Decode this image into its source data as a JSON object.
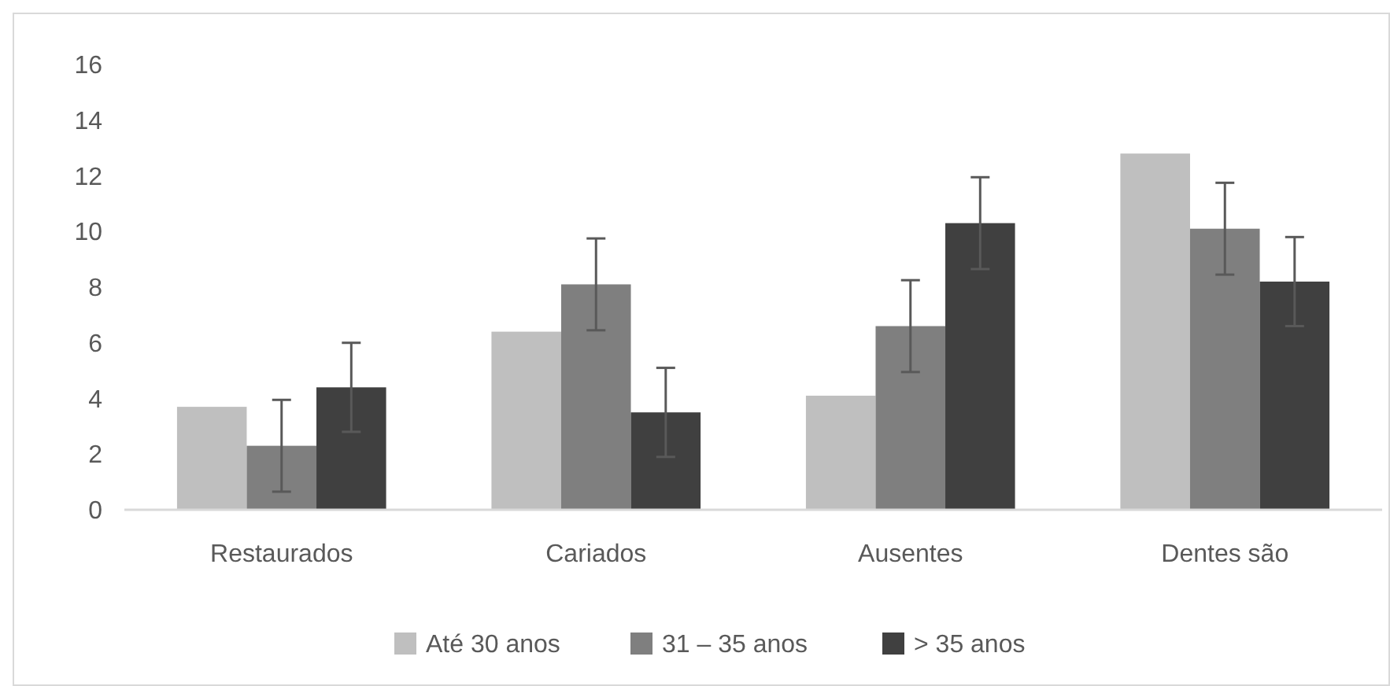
{
  "chart_data": {
    "type": "bar",
    "categories": [
      "Restaurados",
      "Cariados",
      "Ausentes",
      "Dentes são"
    ],
    "series": [
      {
        "name": "Até 30 anos",
        "color": "#bfbfbf",
        "values": [
          3.7,
          6.4,
          4.1,
          12.8
        ]
      },
      {
        "name": "31 – 35 anos",
        "color": "#7f7f7f",
        "values": [
          2.3,
          8.1,
          6.6,
          10.1
        ],
        "errors": [
          1.65,
          1.65,
          1.65,
          1.65
        ]
      },
      {
        "name": "> 35 anos",
        "color": "#404040",
        "values": [
          4.4,
          3.5,
          10.3,
          8.2
        ],
        "errors": [
          1.6,
          1.6,
          1.65,
          1.6
        ]
      }
    ],
    "ylim": [
      0,
      16
    ],
    "yticks": [
      0,
      2,
      4,
      6,
      8,
      10,
      12,
      14,
      16
    ],
    "grid": false,
    "legend": "bottom"
  }
}
